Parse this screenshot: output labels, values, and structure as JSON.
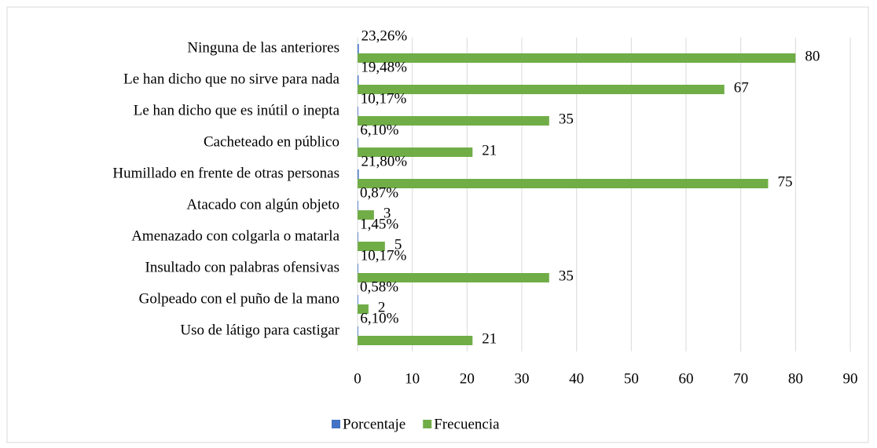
{
  "chart_data": {
    "type": "hbar",
    "categories": [
      "Ninguna de las anteriores",
      "Le han dicho que no sirve para nada",
      "Le han dicho que es inútil o inepta",
      "Cacheteado en público",
      "Humillado en frente de otras personas",
      "Atacado con algún objeto",
      "Amenazado con colgarla o matarla",
      "Insultado con palabras ofensivas",
      "Golpeado con el puño de la mano",
      "Uso de látigo para castigar"
    ],
    "series": [
      {
        "name": "Porcentaje",
        "color": "#4472c4",
        "values": [
          0.2326,
          0.1948,
          0.1017,
          0.061,
          0.218,
          0.0087,
          0.0145,
          0.1017,
          0.0058,
          0.061
        ],
        "value_labels": [
          "23,26%",
          "19,48%",
          "10,17%",
          "6,10%",
          "21,80%",
          "0,87%",
          "1,45%",
          "10,17%",
          "0,58%",
          "6,10%"
        ]
      },
      {
        "name": "Frecuencia",
        "color": "#70ad47",
        "values": [
          80,
          67,
          35,
          21,
          75,
          3,
          5,
          35,
          2,
          21
        ]
      }
    ],
    "xlim": [
      0,
      90
    ],
    "xticks": [
      0,
      10,
      20,
      30,
      40,
      50,
      60,
      70,
      80,
      90
    ],
    "grid": true,
    "legend": "bottom"
  }
}
